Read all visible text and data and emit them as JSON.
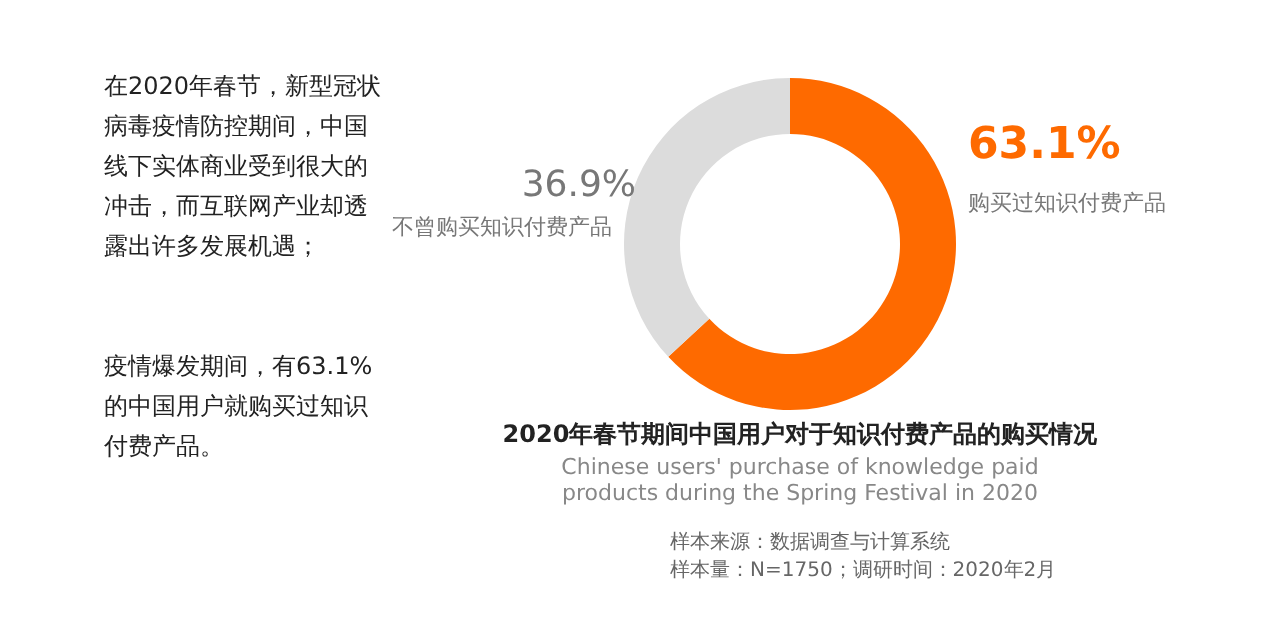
{
  "chart_data": {
    "type": "donut",
    "title": "2020年春节期间中国用户对于知识付费产品的购买情况",
    "subtitle": "Chinese users' purchase of knowledge paid products during the Spring Festival in 2020",
    "categories": [
      "购买过知识付费产品",
      "不曾购买知识付费产品"
    ],
    "values": [
      63.1,
      36.9
    ],
    "colors": [
      "#fe6a00",
      "#dcdcdc"
    ],
    "value_labels": [
      "63.1%",
      "36.9%"
    ],
    "annotations": [
      "在2020年春节，新型冠状病毒疫情防控期间，中国线下实体商业受到很大的冲击，而互联网产业却透露出许多发展机遇；",
      "疫情爆发期间，有63.1%的中国用户就购买过知识付费产品。",
      "样本来源：数据调查与计算系统",
      "样本量：N=1750；调研时间：2020年2月"
    ]
  }
}
